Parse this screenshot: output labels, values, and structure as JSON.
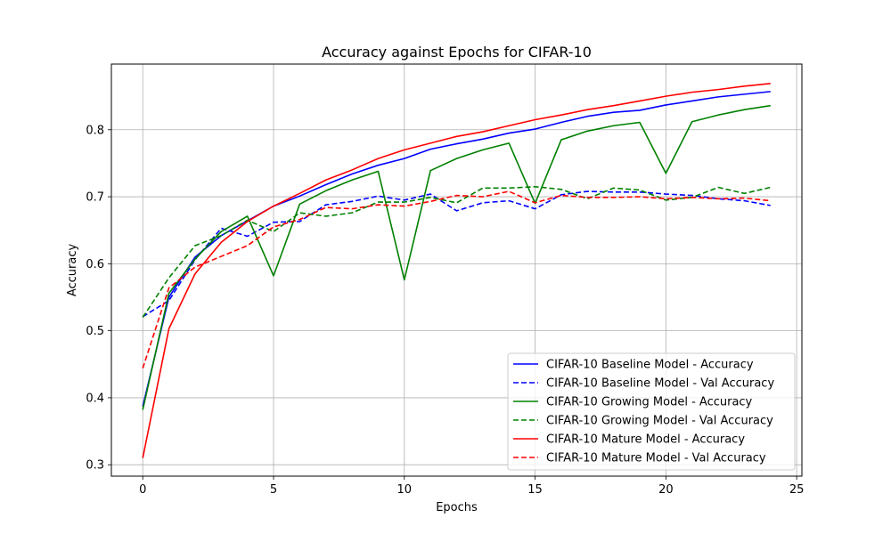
{
  "chart_data": {
    "type": "line",
    "title": "Accuracy against Epochs for CIFAR-10",
    "xlabel": "Epochs",
    "ylabel": "Accuracy",
    "xlim": [
      -1.2,
      25.2
    ],
    "ylim": [
      0.283,
      0.898
    ],
    "xticks": [
      0,
      5,
      10,
      15,
      20,
      25
    ],
    "yticks": [
      0.3,
      0.4,
      0.5,
      0.6,
      0.7,
      0.8
    ],
    "xtick_labels": [
      "0",
      "5",
      "10",
      "15",
      "20",
      "25"
    ],
    "ytick_labels": [
      "0.3",
      "0.4",
      "0.5",
      "0.6",
      "0.7",
      "0.8"
    ],
    "grid": true,
    "legend_position": "lower-right",
    "x": [
      0,
      1,
      2,
      3,
      4,
      5,
      6,
      7,
      8,
      9,
      10,
      11,
      12,
      13,
      14,
      15,
      16,
      17,
      18,
      19,
      20,
      21,
      22,
      23,
      24
    ],
    "series": [
      {
        "name": "CIFAR-10 Baseline Model - Accuracy",
        "color": "#0000ff",
        "style": "solid",
        "values": [
          0.387,
          0.55,
          0.61,
          0.642,
          0.664,
          0.686,
          0.701,
          0.718,
          0.734,
          0.747,
          0.757,
          0.771,
          0.779,
          0.786,
          0.795,
          0.801,
          0.811,
          0.82,
          0.826,
          0.829,
          0.837,
          0.843,
          0.849,
          0.853,
          0.857
        ]
      },
      {
        "name": "CIFAR-10 Baseline Model - Val Accuracy",
        "color": "#0000ff",
        "style": "dashed",
        "values": [
          0.521,
          0.545,
          0.606,
          0.653,
          0.641,
          0.662,
          0.663,
          0.688,
          0.693,
          0.701,
          0.695,
          0.704,
          0.679,
          0.691,
          0.694,
          0.682,
          0.703,
          0.708,
          0.707,
          0.707,
          0.704,
          0.702,
          0.697,
          0.694,
          0.687
        ]
      },
      {
        "name": "CIFAR-10 Growing Model - Accuracy",
        "color": "#008000",
        "style": "solid",
        "values": [
          0.382,
          0.556,
          0.607,
          0.648,
          0.671,
          0.582,
          0.689,
          0.709,
          0.725,
          0.738,
          0.576,
          0.739,
          0.757,
          0.77,
          0.78,
          0.69,
          0.785,
          0.798,
          0.806,
          0.811,
          0.735,
          0.812,
          0.822,
          0.83,
          0.836
        ]
      },
      {
        "name": "CIFAR-10 Growing Model - Val Accuracy",
        "color": "#008000",
        "style": "dashed",
        "values": [
          0.52,
          0.579,
          0.627,
          0.642,
          0.665,
          0.648,
          0.676,
          0.671,
          0.676,
          0.692,
          0.692,
          0.699,
          0.691,
          0.713,
          0.713,
          0.715,
          0.711,
          0.697,
          0.713,
          0.71,
          0.695,
          0.699,
          0.714,
          0.705,
          0.714
        ]
      },
      {
        "name": "CIFAR-10 Mature Model - Accuracy",
        "color": "#ff0000",
        "style": "solid",
        "values": [
          0.31,
          0.503,
          0.585,
          0.632,
          0.663,
          0.686,
          0.705,
          0.725,
          0.74,
          0.757,
          0.77,
          0.78,
          0.79,
          0.797,
          0.806,
          0.815,
          0.822,
          0.83,
          0.836,
          0.843,
          0.85,
          0.856,
          0.86,
          0.865,
          0.869
        ]
      },
      {
        "name": "CIFAR-10 Mature Model - Val Accuracy",
        "color": "#ff0000",
        "style": "dashed",
        "values": [
          0.444,
          0.564,
          0.595,
          0.611,
          0.627,
          0.655,
          0.666,
          0.684,
          0.682,
          0.688,
          0.686,
          0.693,
          0.702,
          0.7,
          0.708,
          0.691,
          0.702,
          0.699,
          0.699,
          0.7,
          0.697,
          0.699,
          0.697,
          0.698,
          0.694
        ]
      }
    ]
  }
}
